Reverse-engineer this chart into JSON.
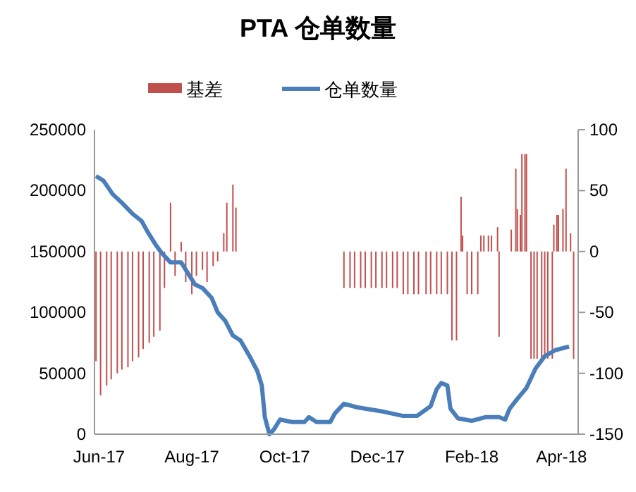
{
  "chart_data": {
    "type": "bar",
    "title": "PTA 仓单数量",
    "legend": "top",
    "grid": false,
    "xlim": [
      "2017-05-29",
      "2018-04-12"
    ],
    "xticks": [
      {
        "value": "2017-06-01",
        "label": "Jun-17"
      },
      {
        "value": "2017-08-01",
        "label": "Aug-17"
      },
      {
        "value": "2017-10-01",
        "label": "Oct-17"
      },
      {
        "value": "2017-12-01",
        "label": "Dec-17"
      },
      {
        "value": "2018-02-01",
        "label": "Feb-18"
      },
      {
        "value": "2018-04-01",
        "label": "Apr-18"
      }
    ],
    "ylim": [
      0,
      250000
    ],
    "yticks": [
      0,
      50000,
      100000,
      150000,
      200000,
      250000
    ],
    "y2lim": [
      -150,
      100
    ],
    "y2ticks": [
      -150,
      -100,
      -50,
      0,
      50,
      100
    ],
    "series": [
      {
        "name": "基差",
        "axis": "y2",
        "color": "#c0504d",
        "x": [
          "2017-05-30",
          "2017-06-02",
          "2017-06-06",
          "2017-06-09",
          "2017-06-13",
          "2017-06-16",
          "2017-06-20",
          "2017-06-23",
          "2017-06-27",
          "2017-06-30",
          "2017-07-04",
          "2017-07-07",
          "2017-07-11",
          "2017-07-14",
          "2017-07-18",
          "2017-07-21",
          "2017-07-25",
          "2017-07-28",
          "2017-08-01",
          "2017-08-04",
          "2017-08-08",
          "2017-08-11",
          "2017-08-15",
          "2017-08-18",
          "2017-08-22",
          "2017-08-24",
          "2017-08-28",
          "2017-08-30",
          "2017-11-09",
          "2017-11-13",
          "2017-11-16",
          "2017-11-20",
          "2017-11-23",
          "2017-11-27",
          "2017-11-30",
          "2017-12-04",
          "2017-12-07",
          "2017-12-11",
          "2017-12-14",
          "2017-12-18",
          "2017-12-21",
          "2017-12-25",
          "2017-12-28",
          "2018-01-02",
          "2018-01-05",
          "2018-01-09",
          "2018-01-12",
          "2018-01-16",
          "2018-01-19",
          "2018-01-22",
          "2018-01-25",
          "2018-01-26",
          "2018-01-29",
          "2018-02-01",
          "2018-02-05",
          "2018-02-07",
          "2018-02-09",
          "2018-02-12",
          "2018-02-14",
          "2018-02-18",
          "2018-02-19",
          "2018-02-27",
          "2018-03-02",
          "2018-03-03",
          "2018-03-05",
          "2018-03-06",
          "2018-03-08",
          "2018-03-09",
          "2018-03-12",
          "2018-03-14",
          "2018-03-16",
          "2018-03-19",
          "2018-03-21",
          "2018-03-23",
          "2018-03-26",
          "2018-03-27",
          "2018-03-29",
          "2018-03-30",
          "2018-04-02",
          "2018-04-04",
          "2018-04-07",
          "2018-04-09"
        ],
        "values": [
          -90,
          -118,
          -110,
          -105,
          -100,
          -97,
          -95,
          -90,
          -87,
          -80,
          -75,
          -70,
          -65,
          -30,
          40,
          -20,
          8,
          -25,
          -35,
          -20,
          -15,
          -25,
          -12,
          -8,
          15,
          40,
          55,
          36,
          -30,
          -30,
          -30,
          -30,
          -30,
          -30,
          -30,
          -30,
          -30,
          -30,
          -30,
          -35,
          -35,
          -35,
          -35,
          -35,
          -35,
          -35,
          -35,
          -35,
          -73,
          -73,
          45,
          13,
          -35,
          -35,
          -35,
          13,
          13,
          13,
          13,
          20,
          -70,
          18,
          68,
          35,
          30,
          80,
          80,
          80,
          -88,
          -88,
          -88,
          -88,
          -88,
          -88,
          -88,
          22,
          30,
          30,
          35,
          68,
          15,
          -88
        ]
      },
      {
        "name": "仓单数量",
        "type": "line",
        "color": "#4a7ebb",
        "x": [
          "2017-05-30",
          "2017-06-04",
          "2017-06-10",
          "2017-06-16",
          "2017-06-23",
          "2017-06-29",
          "2017-07-03",
          "2017-07-08",
          "2017-07-12",
          "2017-07-18",
          "2017-07-25",
          "2017-07-29",
          "2017-08-03",
          "2017-08-08",
          "2017-08-14",
          "2017-08-18",
          "2017-08-23",
          "2017-08-28",
          "2017-09-02",
          "2017-09-08",
          "2017-09-13",
          "2017-09-16",
          "2017-09-18",
          "2017-09-21",
          "2017-09-24",
          "2017-09-28",
          "2017-10-06",
          "2017-10-14",
          "2017-10-17",
          "2017-10-22",
          "2017-10-28",
          "2017-10-31",
          "2017-11-03",
          "2017-11-09",
          "2017-11-18",
          "2017-12-03",
          "2017-12-18",
          "2017-12-27",
          "2018-01-05",
          "2018-01-09",
          "2018-01-12",
          "2018-01-16",
          "2018-01-18",
          "2018-01-23",
          "2018-02-01",
          "2018-02-10",
          "2018-02-19",
          "2018-02-23",
          "2018-02-26",
          "2018-03-03",
          "2018-03-09",
          "2018-03-15",
          "2018-03-21",
          "2018-03-28",
          "2018-04-06"
        ],
        "values": [
          212000,
          208000,
          197000,
          190000,
          181000,
          175000,
          166000,
          156000,
          149000,
          141000,
          141000,
          133000,
          123000,
          120000,
          112000,
          100000,
          93000,
          81000,
          77000,
          64000,
          52000,
          40000,
          14000,
          0,
          4000,
          12000,
          10000,
          10000,
          14000,
          10000,
          10000,
          10000,
          17000,
          25000,
          22000,
          19000,
          15000,
          15000,
          23000,
          37000,
          42000,
          40000,
          21000,
          13000,
          11000,
          14000,
          14000,
          12000,
          21000,
          29000,
          38000,
          54000,
          64000,
          69000,
          72000
        ]
      }
    ]
  }
}
